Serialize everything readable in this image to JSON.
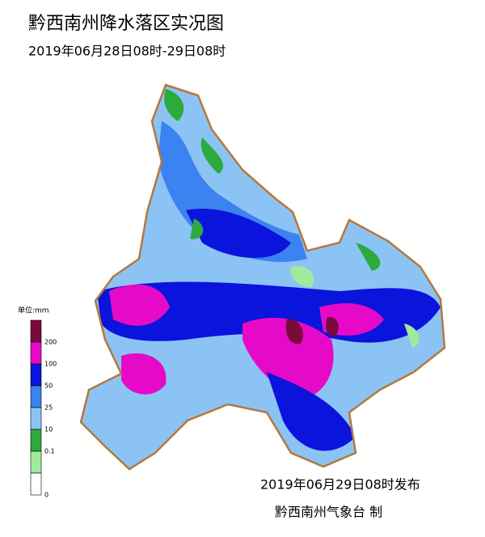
{
  "header": {
    "title": "黔西南州降水落区实况图",
    "subtitle": "2019年06月28日08时-29日08时"
  },
  "legend": {
    "unit": "单位:mm",
    "colors": [
      "#7a0a3c",
      "#e60ac8",
      "#0a14dc",
      "#3c82f0",
      "#8cc3f5",
      "#2daa3c",
      "#a0eb9b",
      "#ffffff"
    ],
    "ticks": [
      "200",
      "100",
      "50",
      "25",
      "10",
      "0.1",
      "0"
    ]
  },
  "footer": {
    "release": "2019年06月29日08时发布",
    "issuer": "黔西南州气象台  制"
  }
}
